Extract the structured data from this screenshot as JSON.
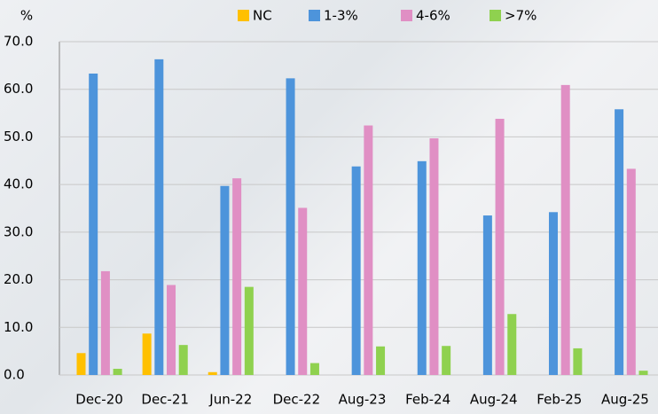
{
  "chart_data": {
    "type": "bar",
    "y_label": "%",
    "categories": [
      "Dec-20",
      "Dec-21",
      "Jun-22",
      "Dec-22",
      "Aug-23",
      "Feb-24",
      "Aug-24",
      "Feb-25",
      "Aug-25"
    ],
    "series": [
      {
        "name": "NC",
        "color": "#ffc000",
        "values": [
          4.6,
          8.7,
          0.6,
          null,
          null,
          null,
          null,
          null,
          null
        ]
      },
      {
        "name": "1-3%",
        "color": "#4d94db",
        "values": [
          63.3,
          66.3,
          39.7,
          62.3,
          43.8,
          44.9,
          33.5,
          34.2,
          55.8
        ]
      },
      {
        "name": "4-6%",
        "color": "#e08fc4",
        "values": [
          21.8,
          18.9,
          41.3,
          35.1,
          52.4,
          49.7,
          53.8,
          60.9,
          43.3
        ]
      },
      {
        "name": ">7%",
        "color": "#8fd14f",
        "values": [
          1.3,
          6.3,
          18.5,
          2.5,
          6.0,
          6.1,
          12.8,
          5.6,
          0.9
        ]
      }
    ],
    "ylim": [
      0,
      70
    ],
    "yticks": [
      {
        "value": 0,
        "label": "0.0"
      },
      {
        "value": 10,
        "label": "10.0"
      },
      {
        "value": 20,
        "label": "20.0"
      },
      {
        "value": 30,
        "label": "30.0"
      },
      {
        "value": 40,
        "label": "40.0"
      },
      {
        "value": 50,
        "label": "50.0"
      },
      {
        "value": 60,
        "label": "60.0"
      },
      {
        "value": 70,
        "label": "70.0"
      }
    ],
    "grid": true,
    "legend": "top"
  }
}
